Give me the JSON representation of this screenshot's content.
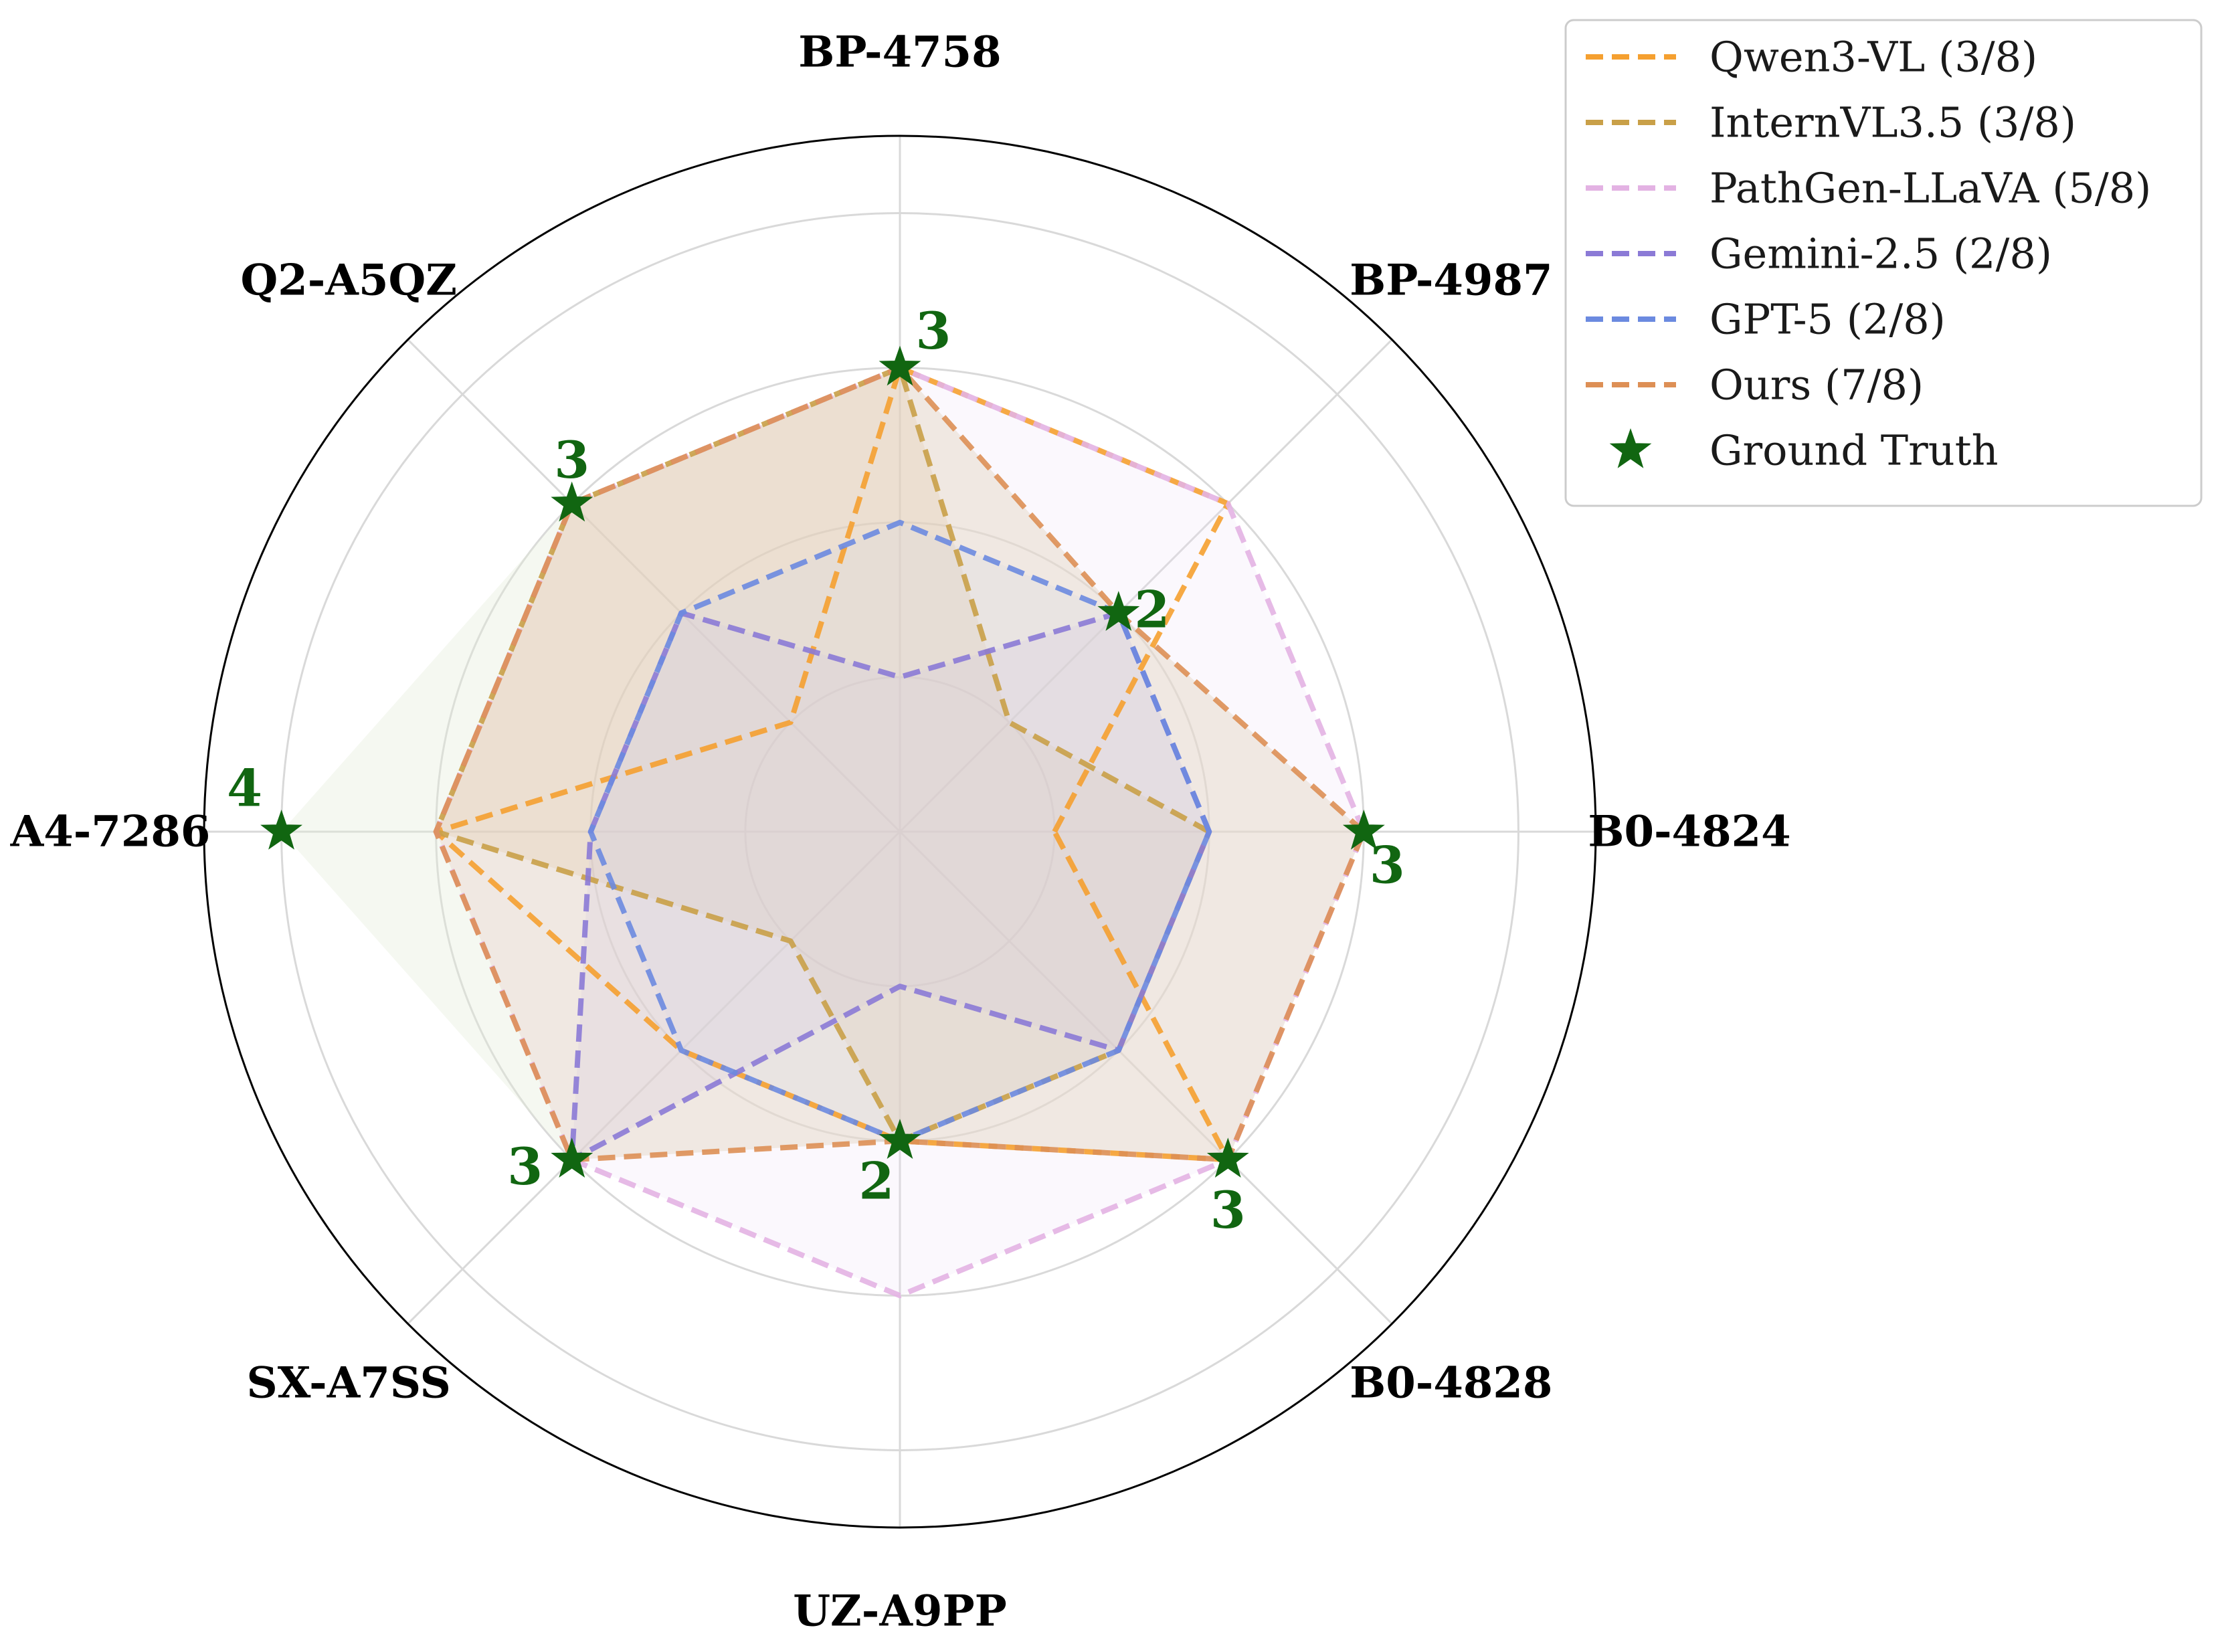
{
  "chart_data": {
    "type": "radar",
    "categories": [
      "B0-4824",
      "BP-4987",
      "BP-4758",
      "Q2-A5QZ",
      "A4-7286",
      "SX-A7SS",
      "UZ-A9PP",
      "B0-4828"
    ],
    "rlim": [
      0,
      4.5
    ],
    "grid": true,
    "legend_position": "top-right",
    "series": [
      {
        "name": "Qwen3-VL (3/8)",
        "color": "#f5a030",
        "values": [
          1,
          3,
          3,
          1,
          3,
          2,
          2,
          3
        ],
        "filled": false
      },
      {
        "name": "InternVL3.5 (3/8)",
        "color": "#c9a048",
        "values": [
          2,
          1,
          3,
          3,
          3,
          1,
          2,
          2
        ],
        "filled": true,
        "fill": "#d8bc78"
      },
      {
        "name": "PathGen-LLaVA (5/8)",
        "color": "#e3b2e3",
        "values": [
          3,
          3,
          3,
          3,
          3,
          3,
          3,
          3
        ],
        "filled": true,
        "fill": "#ece0f8"
      },
      {
        "name": "Gemini-2.5 (2/8)",
        "color": "#8b7ad6",
        "values": [
          2,
          2,
          1,
          2,
          2,
          3,
          1,
          2
        ],
        "filled": true,
        "fill": "#c9c2ec"
      },
      {
        "name": "GPT-5 (2/8)",
        "color": "#6b8ae0",
        "values": [
          2,
          2,
          2,
          2,
          2,
          2,
          2,
          2
        ],
        "filled": true,
        "fill": "#cfd9f6"
      },
      {
        "name": "Ours (7/8)",
        "color": "#dd8f55",
        "values": [
          3,
          2,
          3,
          3,
          3,
          3,
          2,
          3
        ],
        "filled": true,
        "fill": "#e9c6a8"
      }
    ],
    "ground_truth": {
      "name": "Ground Truth",
      "color": "#116611",
      "values": [
        3,
        2,
        3,
        3,
        4,
        3,
        2,
        3
      ],
      "labels": [
        "3",
        "2",
        "3",
        "3",
        "4",
        "3",
        "2",
        "3"
      ],
      "fill": "#e2ecd8"
    }
  }
}
